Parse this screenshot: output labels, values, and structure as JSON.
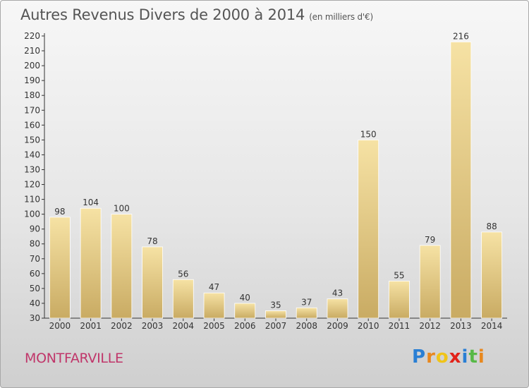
{
  "title": "Autres Revenus Divers de 2000 à 2014",
  "unit_note": "(en milliers d'€)",
  "commune": "MONTFARVILLE",
  "logo": {
    "letters": [
      "P",
      "r",
      "o",
      "x",
      "i",
      "t",
      "i"
    ],
    "colors": [
      "#2a7fd4",
      "#e8881e",
      "#f0c419",
      "#e2231a",
      "#2a7fd4",
      "#57b947",
      "#e8881e"
    ]
  },
  "colors": {
    "bar_light": "#f6e2a4",
    "bar_dark": "#c9ab63",
    "commune_text": "#c0366a",
    "title_text": "#555555"
  },
  "chart_data": {
    "type": "bar",
    "categories": [
      "2000",
      "2001",
      "2002",
      "2003",
      "2004",
      "2005",
      "2006",
      "2007",
      "2008",
      "2009",
      "2010",
      "2011",
      "2012",
      "2013",
      "2014"
    ],
    "values": [
      98,
      104,
      100,
      78,
      56,
      47,
      40,
      35,
      37,
      43,
      150,
      55,
      79,
      216,
      88
    ],
    "title": "Autres Revenus Divers de 2000 à 2014",
    "xlabel": "",
    "ylabel": "",
    "ylim": [
      30,
      220
    ],
    "yticks": [
      30,
      40,
      50,
      60,
      70,
      80,
      90,
      100,
      110,
      120,
      130,
      140,
      150,
      160,
      170,
      180,
      190,
      200,
      210,
      220
    ],
    "grid": false,
    "legend": "none"
  }
}
